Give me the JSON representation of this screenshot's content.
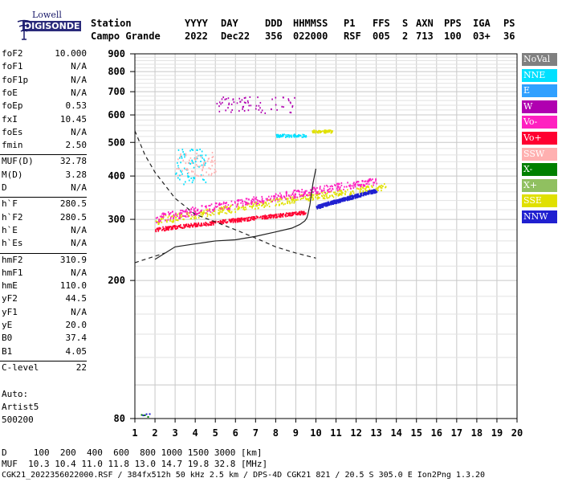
{
  "logo": {
    "line1": "Lowell",
    "line2": "DIGISONDE"
  },
  "header": {
    "line1": [
      "Station",
      "YYYY",
      "DAY",
      "DDD",
      "HHMMSS",
      "P1",
      "FFS",
      "S",
      "AXN",
      "PPS",
      "IGA",
      "PS"
    ],
    "line2": [
      "Campo Grande",
      "2022",
      "Dec22",
      "356",
      "022000",
      "RSF",
      "005",
      "2",
      "713",
      "100",
      "03+",
      "36"
    ]
  },
  "params": [
    {
      "label": "foF2",
      "value": "10.000"
    },
    {
      "label": "foF1",
      "value": "N/A"
    },
    {
      "label": "foF1p",
      "value": "N/A"
    },
    {
      "label": "foE",
      "value": "N/A"
    },
    {
      "label": "foEp",
      "value": "0.53"
    },
    {
      "label": "fxI",
      "value": "10.45"
    },
    {
      "label": "foEs",
      "value": "N/A"
    },
    {
      "label": "fmin",
      "value": "2.50"
    },
    {
      "label": "MUF(D)",
      "value": "32.78"
    },
    {
      "label": "M(D)",
      "value": "3.28"
    },
    {
      "label": "D",
      "value": "N/A"
    },
    {
      "label": "h`F",
      "value": "280.5"
    },
    {
      "label": "h`F2",
      "value": "280.5"
    },
    {
      "label": "h`E",
      "value": "N/A"
    },
    {
      "label": "h`Es",
      "value": "N/A"
    },
    {
      "label": "hmF2",
      "value": "310.9"
    },
    {
      "label": "hmF1",
      "value": "N/A"
    },
    {
      "label": "hmE",
      "value": "110.0"
    },
    {
      "label": "yF2",
      "value": "44.5"
    },
    {
      "label": "yF1",
      "value": "N/A"
    },
    {
      "label": "yE",
      "value": "20.0"
    },
    {
      "label": "B0",
      "value": "37.4"
    },
    {
      "label": "B1",
      "value": "4.05"
    },
    {
      "label": "C-level",
      "value": "22"
    }
  ],
  "auto": {
    "line1": "Auto:",
    "line2": "Artist5",
    "line3": "500200"
  },
  "legend": [
    {
      "label": "NoVal",
      "color": "#808080"
    },
    {
      "label": "NNE",
      "color": "#00e0ff"
    },
    {
      "label": "E",
      "color": "#30a0ff"
    },
    {
      "label": "W",
      "color": "#b000b0"
    },
    {
      "label": "Vo-",
      "color": "#ff20c0"
    },
    {
      "label": "Vo+",
      "color": "#ff0030"
    },
    {
      "label": "SSW",
      "color": "#ffb0b0"
    },
    {
      "label": "X-",
      "color": "#008000"
    },
    {
      "label": "X+",
      "color": "#90c060"
    },
    {
      "label": "SSE",
      "color": "#e0e000"
    },
    {
      "label": "NNW",
      "color": "#2020d0"
    }
  ],
  "footer": {
    "line1": "D     100  200  400  600  800 1000 1500 3000 [km]",
    "line2": "MUF  10.3 10.4 11.0 11.8 13.0 14.7 19.8 32.8 [MHz]",
    "line3": "CGK21_2022356022000.RSF / 384fx512h 50 kHz 2.5 km / DPS-4D CGK21 821 / 20.5 S 305.0 E Ion2Png 1.3.20"
  },
  "chart_data": {
    "type": "scatter",
    "xlabel": "",
    "ylabel": "",
    "xlim": [
      1,
      20
    ],
    "ylim": [
      80,
      900
    ],
    "x_ticks": [
      1,
      2,
      3,
      4,
      5,
      6,
      7,
      8,
      9,
      10,
      11,
      12,
      13,
      14,
      15,
      16,
      17,
      18,
      19,
      20
    ],
    "y_ticks": [
      80,
      200,
      300,
      400,
      500,
      600,
      700,
      800,
      900
    ],
    "y_scale": "log",
    "grid": true,
    "legend_position": "right",
    "trace_curve_solid": {
      "x": [
        2.0,
        3.0,
        4.0,
        5.0,
        6.0,
        7.0,
        8.0,
        8.8,
        9.2,
        9.45,
        9.55,
        9.6,
        9.7,
        9.85,
        10.0
      ],
      "y": [
        230,
        250,
        255,
        260,
        262,
        268,
        276,
        283,
        290,
        297,
        303,
        310,
        330,
        380,
        420
      ]
    },
    "trace_curve_dashed": {
      "x": [
        1.0,
        1.5,
        2.0,
        3.0,
        4.0,
        5.0,
        6.0,
        7.0,
        8.0,
        9.0,
        10.0
      ],
      "y": [
        540,
        460,
        410,
        345,
        310,
        295,
        280,
        265,
        250,
        240,
        232
      ]
    },
    "lower_dashed": {
      "x": [
        1.0,
        1.5,
        2.0,
        2.5
      ],
      "y": [
        225,
        230,
        235,
        240
      ]
    },
    "clusters": [
      {
        "series": "SSE",
        "x": [
          2.0,
          13.5
        ],
        "y": [
          295,
          385
        ],
        "slope": 1
      },
      {
        "series": "Vo-",
        "x": [
          2.0,
          13.0
        ],
        "y": [
          300,
          400
        ],
        "slope": 1
      },
      {
        "series": "Vo+",
        "x": [
          2.0,
          9.5
        ],
        "y": [
          280,
          320
        ],
        "slope": 1
      },
      {
        "series": "NNW",
        "x": [
          10.0,
          13.0
        ],
        "y": [
          325,
          370
        ],
        "slope": 1
      },
      {
        "series": "NNE",
        "x": [
          3.0,
          4.5
        ],
        "y": [
          380,
          480
        ],
        "slope": 0
      },
      {
        "series": "SSW",
        "x": [
          3.0,
          5.0
        ],
        "y": [
          400,
          470
        ],
        "slope": 0
      },
      {
        "series": "W",
        "x": [
          5.0,
          9.0
        ],
        "y": [
          610,
          680
        ],
        "slope": 0
      },
      {
        "series": "NNE",
        "x": [
          8.0,
          9.5
        ],
        "y": [
          520,
          530
        ],
        "slope": 0
      },
      {
        "series": "SSE",
        "x": [
          9.8,
          10.8
        ],
        "y": [
          535,
          545
        ],
        "slope": 0
      }
    ]
  }
}
